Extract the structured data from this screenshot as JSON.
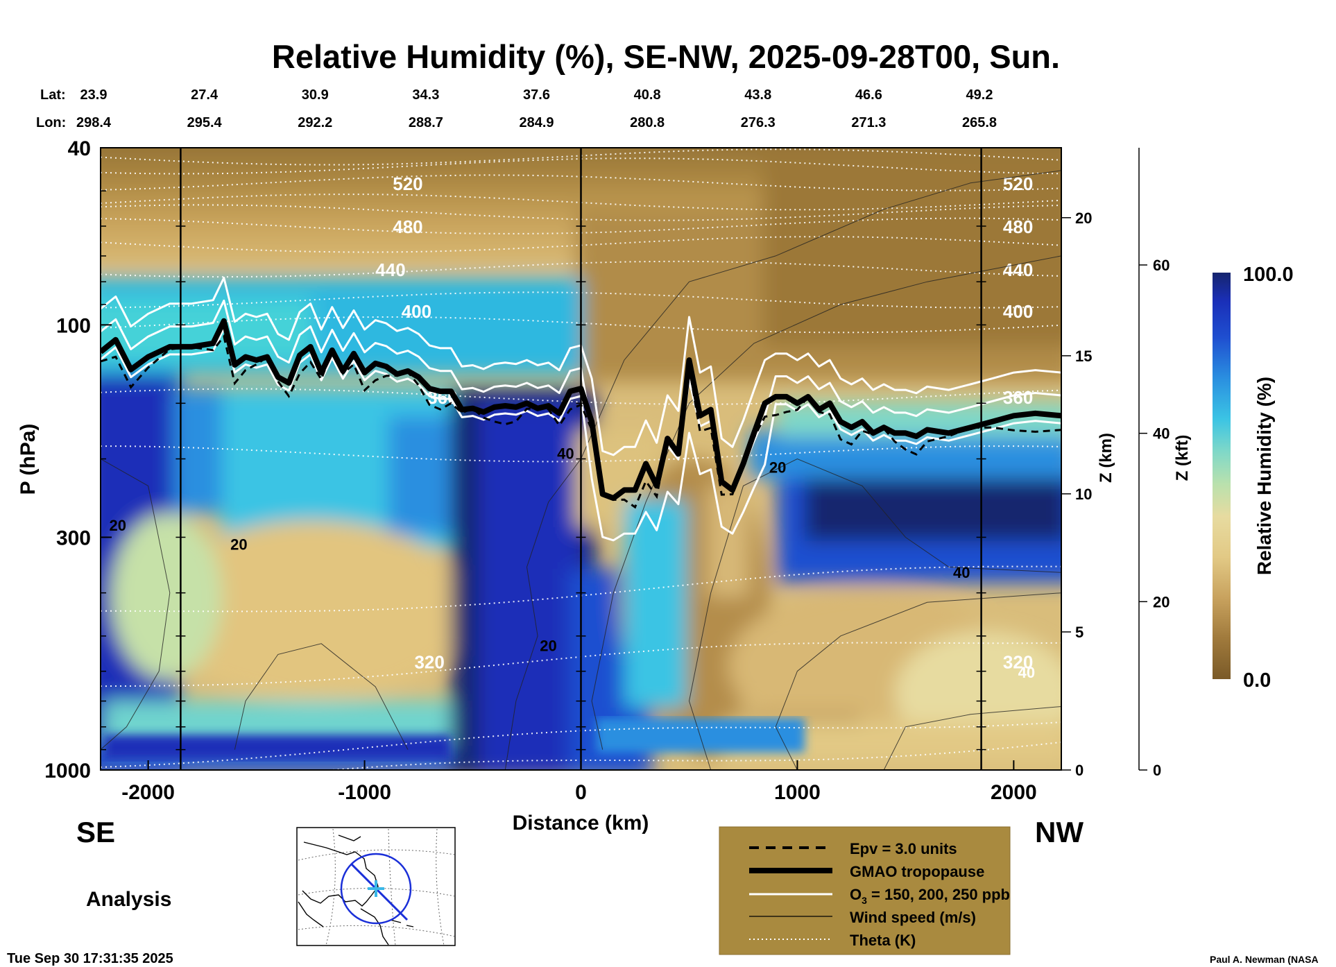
{
  "chart_data": {
    "type": "heatmap",
    "title": "Relative Humidity (%), SE-NW, 2025-09-28T00, Sun.",
    "xlabel": "Distance (km)",
    "ylabel": "P (hPa)",
    "xlim": [
      -2220,
      2220
    ],
    "ylim": [
      1000,
      40
    ],
    "y_scale": "log",
    "x_ticks": [
      -2000,
      -1000,
      0,
      1000,
      2000
    ],
    "y_ticks": [
      40,
      100,
      300,
      1000
    ],
    "z_km_label": "Z (km)",
    "z_km_ticks": [
      0,
      5,
      10,
      15,
      20
    ],
    "z_kft_label": "Z (kft)",
    "z_kft_ticks": [
      0,
      20,
      40,
      60
    ],
    "lat_label": "Lat:",
    "lon_label": "Lon:",
    "lat_values": [
      "23.9",
      "27.4",
      "30.9",
      "34.3",
      "37.6",
      "40.8",
      "43.8",
      "46.6",
      "49.2"
    ],
    "lon_values": [
      "298.4",
      "295.4",
      "292.2",
      "288.7",
      "284.9",
      "280.8",
      "276.3",
      "271.3",
      "265.8"
    ],
    "colorbar": {
      "label": "Relative Humidity (%)",
      "min": "0.0",
      "max": "100.0",
      "colors": [
        "#7a5a28",
        "#a07a3c",
        "#c8a25e",
        "#e2c985",
        "#e7dba0",
        "#b9e1ad",
        "#7fd8c8",
        "#3bc4e4",
        "#2a8fe0",
        "#1f4fd0",
        "#1a2fb8",
        "#16256e"
      ]
    },
    "theta_levels": [
      {
        "label": "520",
        "p": 48
      },
      {
        "label": "480",
        "p": 60
      },
      {
        "label": "440",
        "p": 75
      },
      {
        "label": "400",
        "p": 93
      },
      {
        "label": "360",
        "p": 145
      },
      {
        "label": "320",
        "p": 570
      }
    ],
    "wind_labels": [
      "20",
      "40",
      "20",
      "40",
      "20",
      "40",
      "20"
    ],
    "tropopause": {
      "x": [
        -2220,
        -2150,
        -2080,
        -2000,
        -1900,
        -1800,
        -1700,
        -1650,
        -1600,
        -1550,
        -1500,
        -1450,
        -1400,
        -1350,
        -1300,
        -1250,
        -1200,
        -1150,
        -1100,
        -1050,
        -1000,
        -950,
        -900,
        -850,
        -800,
        -750,
        -700,
        -650,
        -600,
        -550,
        -500,
        -450,
        -400,
        -350,
        -300,
        -250,
        -200,
        -150,
        -100,
        -50,
        0,
        50,
        100,
        150,
        200,
        250,
        300,
        350,
        400,
        450,
        500,
        550,
        600,
        650,
        700,
        750,
        800,
        850,
        900,
        950,
        1000,
        1050,
        1100,
        1150,
        1200,
        1250,
        1300,
        1350,
        1400,
        1450,
        1500,
        1550,
        1600,
        1700,
        1800,
        1900,
        2000,
        2100,
        2220
      ],
      "p": [
        115,
        108,
        126,
        118,
        112,
        112,
        110,
        98,
        123,
        118,
        120,
        118,
        131,
        135,
        117,
        112,
        128,
        114,
        127,
        116,
        128,
        122,
        124,
        129,
        127,
        131,
        139,
        141,
        141,
        155,
        154,
        157,
        153,
        152,
        153,
        150,
        154,
        152,
        158,
        141,
        139,
        165,
        240,
        245,
        235,
        235,
        205,
        230,
        180,
        195,
        120,
        160,
        155,
        225,
        235,
        205,
        175,
        150,
        145,
        145,
        150,
        145,
        155,
        150,
        165,
        170,
        165,
        175,
        170,
        175,
        175,
        178,
        172,
        175,
        170,
        165,
        160,
        158,
        160
      ]
    },
    "legend": [
      {
        "label": "Epv = 3.0 units",
        "style": "dashed-black"
      },
      {
        "label": "GMAO tropopause",
        "style": "thick-black"
      },
      {
        "label": "O",
        "sub": "3",
        "rest": " = 150, 200, 250 ppb",
        "style": "white"
      },
      {
        "label": "Wind speed (m/s)",
        "style": "thin-black"
      },
      {
        "label": "Theta (K)",
        "style": "dotted-white"
      }
    ]
  },
  "labels": {
    "left_direction": "SE",
    "right_direction": "NW",
    "analysis": "Analysis",
    "timestamp": "Tue Sep 30 17:31:35 2025",
    "credit": "Paul A. Newman (NASA"
  },
  "colors": {
    "legend_bg": "#a98a3f"
  }
}
